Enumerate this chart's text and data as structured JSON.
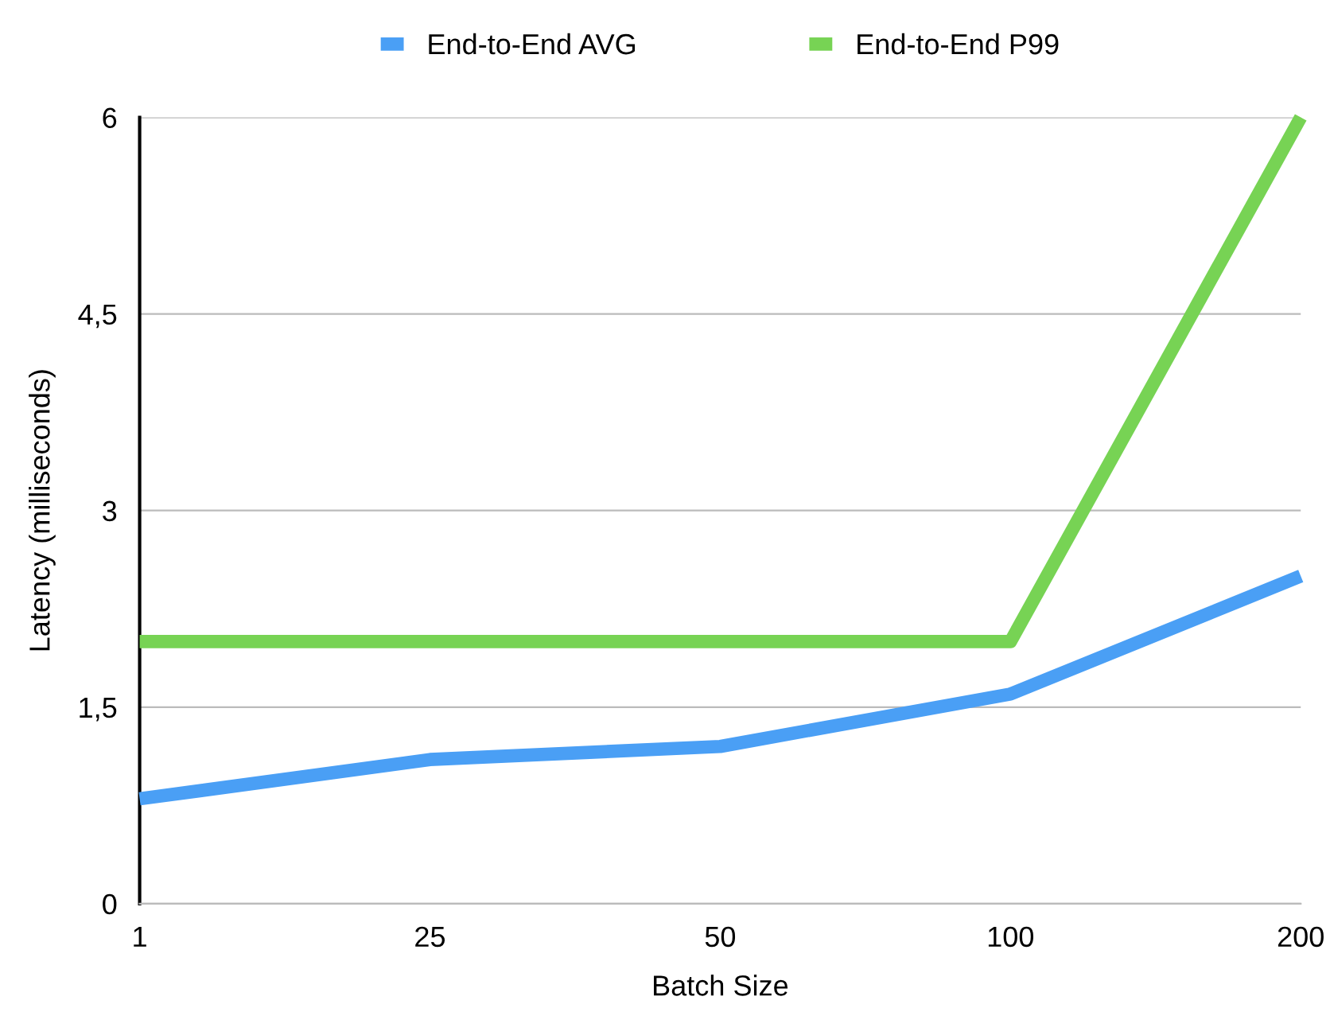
{
  "chart_data": {
    "type": "line",
    "xlabel": "Batch Size",
    "ylabel": "Latency (milliseconds)",
    "categories": [
      "1",
      "25",
      "50",
      "100",
      "200"
    ],
    "series": [
      {
        "name": "End-to-End AVG",
        "color": "#4a9ff5",
        "values": [
          0.8,
          1.1,
          1.2,
          1.6,
          2.5
        ]
      },
      {
        "name": "End-to-End P99",
        "color": "#77d354",
        "values": [
          2,
          2,
          2,
          2,
          6
        ]
      }
    ],
    "ylim": [
      0,
      6
    ],
    "yticks": [
      0,
      {
        "value": 1.5,
        "label": "1,5"
      },
      3,
      {
        "value": 4.5,
        "label": "4,5"
      },
      6
    ],
    "grid": "y",
    "legend": "top",
    "marker": "none",
    "line_style": "solid"
  }
}
